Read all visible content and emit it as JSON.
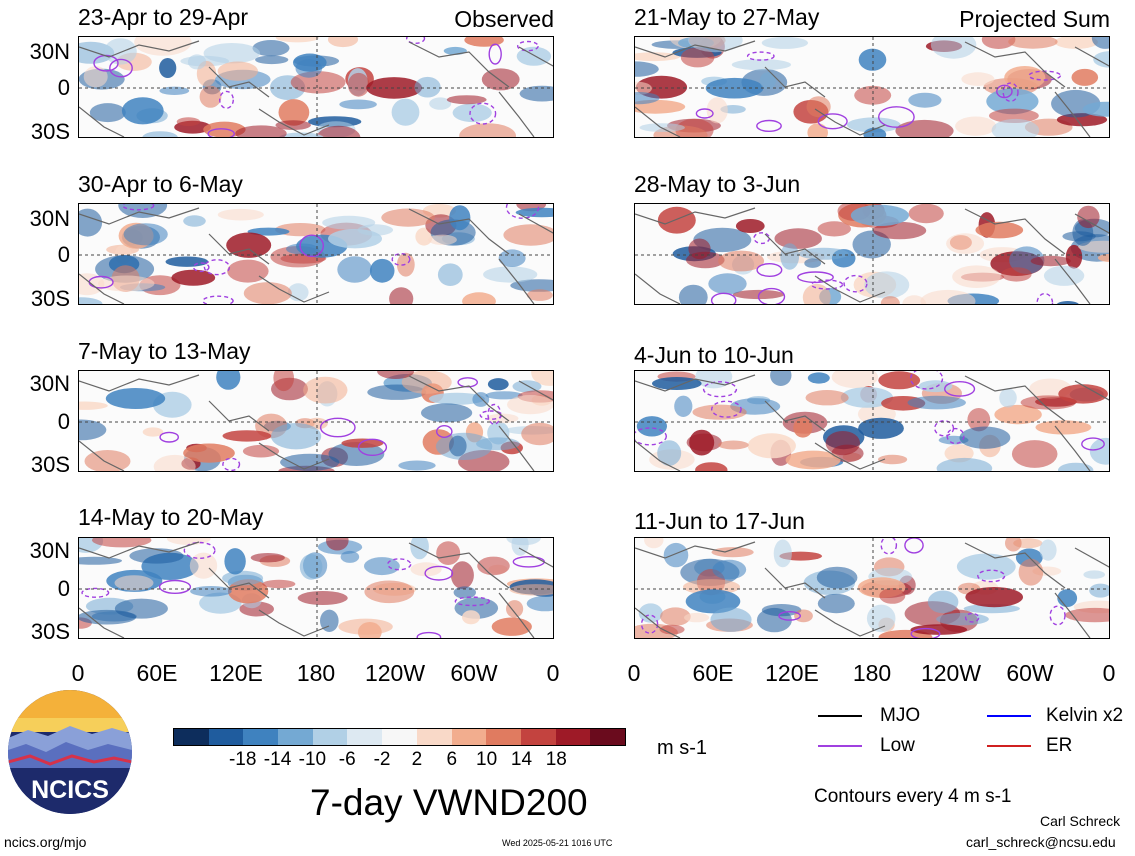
{
  "panels": [
    {
      "title": "23-Apr to 29-Apr",
      "tag": "Observed"
    },
    {
      "title": "30-Apr to 6-May",
      "tag": ""
    },
    {
      "title": "7-May to 13-May",
      "tag": ""
    },
    {
      "title": "14-May to 20-May",
      "tag": ""
    },
    {
      "title": "21-May to 27-May",
      "tag": "Projected Sum"
    },
    {
      "title": "28-May to 3-Jun",
      "tag": ""
    },
    {
      "title": "4-Jun to 10-Jun",
      "tag": ""
    },
    {
      "title": "11-Jun to 17-Jun",
      "tag": ""
    }
  ],
  "yaxis": [
    "30N",
    "0",
    "30S"
  ],
  "xaxis": [
    "0",
    "60E",
    "120E",
    "180",
    "120W",
    "60W",
    "0"
  ],
  "colorbar": {
    "labels": [
      "-18",
      "-14",
      "-10",
      "-6",
      "-2",
      "2",
      "6",
      "10",
      "14",
      "18"
    ],
    "colors": [
      "#0d2d5c",
      "#1f5c9e",
      "#3f82bf",
      "#74a9d3",
      "#b1d0e6",
      "#dde9f2",
      "#f7f7f7",
      "#f9d9c8",
      "#f2ad8e",
      "#e07b60",
      "#c3433f",
      "#9e1a27",
      "#6a0b1d"
    ],
    "units": "m s-1"
  },
  "legend": [
    {
      "label": "MJO",
      "color": "#000000"
    },
    {
      "label": "Kelvin x2",
      "color": "#0000ff"
    },
    {
      "label": "Low",
      "color": "#a040e0"
    },
    {
      "label": "ER",
      "color": "#d02020"
    }
  ],
  "main_title": "7-day VWND200",
  "contour_note": "Contours every 4 m s-1",
  "author": "Carl Schreck",
  "email": "carl_schreck@ncsu.edu",
  "site": "ncics.org/mjo",
  "timestamp": "Wed 2025-05-21 1016 UTC",
  "logo_text": "NCICS"
}
